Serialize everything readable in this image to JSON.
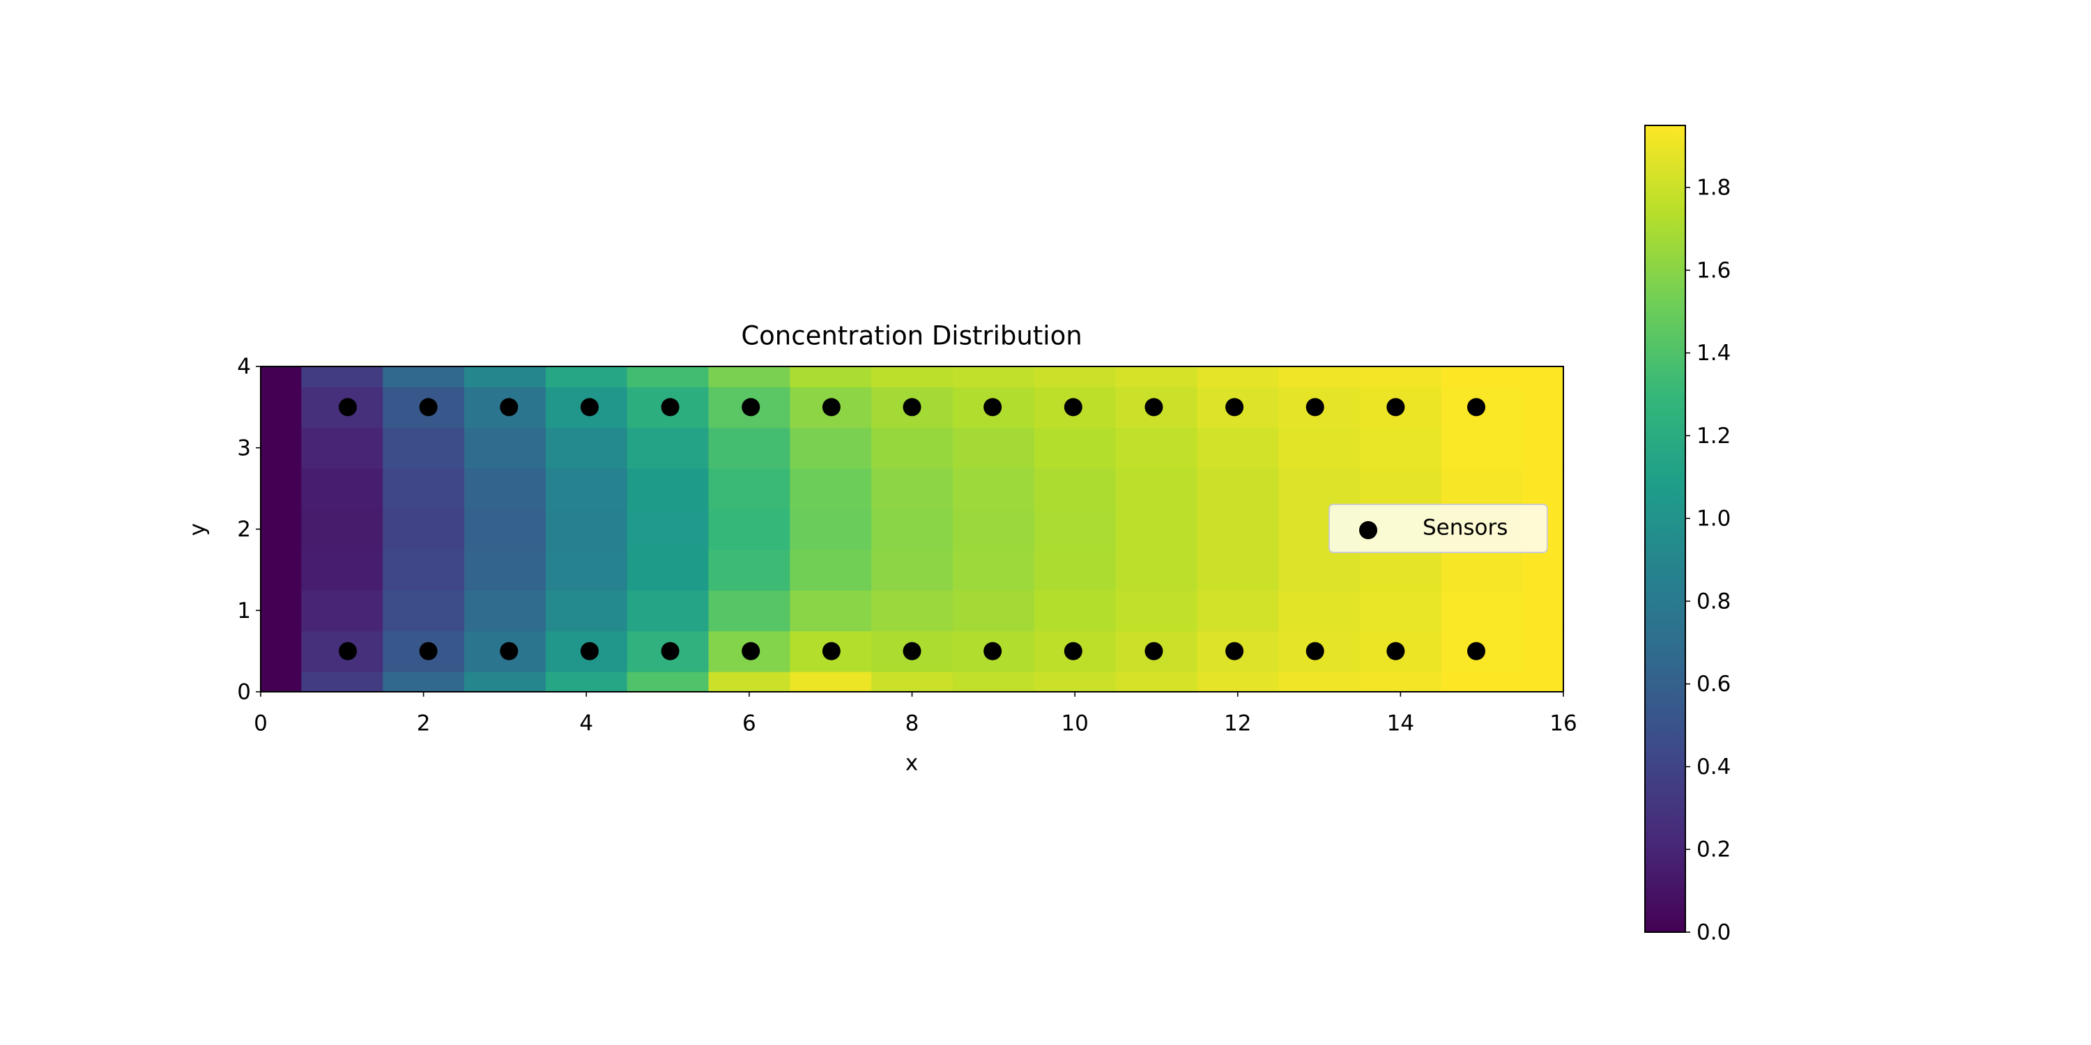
{
  "chart_data": {
    "type": "contour",
    "title": "Concentration Distribution",
    "xlabel": "x",
    "ylabel": "y",
    "xlim": [
      0,
      16
    ],
    "ylim": [
      0,
      4
    ],
    "xticks": [
      0,
      2,
      4,
      6,
      8,
      10,
      12,
      14,
      16
    ],
    "yticks": [
      0,
      1,
      2,
      3,
      4
    ],
    "colormap": "viridis",
    "clim": [
      0,
      1.95
    ],
    "cticks": [
      {
        "value": 0,
        "label": "0.0"
      },
      0.2,
      0.4,
      0.6,
      0.8,
      {
        "value": 1,
        "label": "1.0"
      },
      1.2,
      1.4,
      1.6,
      1.8
    ],
    "grid_x": [
      0,
      1,
      2,
      3,
      4,
      5,
      6,
      7,
      8,
      9,
      10,
      11,
      12,
      13,
      14,
      15,
      16
    ],
    "grid_y": [
      0,
      0.5,
      1,
      1.5,
      2,
      2.5,
      3,
      3.5,
      4
    ],
    "z": [
      [
        0,
        0.35,
        0.65,
        0.9,
        1.15,
        1.4,
        1.8,
        1.9,
        1.8,
        1.77,
        1.8,
        1.83,
        1.88,
        1.91,
        1.92,
        1.95,
        1.95
      ],
      [
        0,
        0.26,
        0.54,
        0.77,
        1.02,
        1.25,
        1.58,
        1.73,
        1.71,
        1.72,
        1.76,
        1.8,
        1.85,
        1.88,
        1.9,
        1.94,
        1.95
      ],
      [
        0,
        0.2,
        0.46,
        0.68,
        0.93,
        1.14,
        1.43,
        1.6,
        1.65,
        1.68,
        1.73,
        1.77,
        1.82,
        1.87,
        1.89,
        1.94,
        1.95
      ],
      [
        0,
        0.16,
        0.42,
        0.62,
        0.87,
        1.07,
        1.33,
        1.53,
        1.61,
        1.66,
        1.71,
        1.75,
        1.8,
        1.85,
        1.88,
        1.93,
        1.95
      ],
      [
        0,
        0.15,
        0.4,
        0.6,
        0.85,
        1.05,
        1.3,
        1.5,
        1.6,
        1.65,
        1.7,
        1.75,
        1.8,
        1.85,
        1.88,
        1.93,
        1.95
      ],
      [
        0,
        0.16,
        0.42,
        0.62,
        0.87,
        1.07,
        1.32,
        1.51,
        1.61,
        1.66,
        1.71,
        1.75,
        1.8,
        1.85,
        1.88,
        1.93,
        1.95
      ],
      [
        0,
        0.2,
        0.46,
        0.68,
        0.93,
        1.13,
        1.36,
        1.55,
        1.64,
        1.68,
        1.73,
        1.77,
        1.82,
        1.87,
        1.89,
        1.94,
        1.95
      ],
      [
        0,
        0.26,
        0.54,
        0.77,
        1.02,
        1.22,
        1.44,
        1.61,
        1.68,
        1.72,
        1.76,
        1.8,
        1.85,
        1.88,
        1.9,
        1.94,
        1.95
      ],
      [
        0,
        0.35,
        0.65,
        0.9,
        1.15,
        1.35,
        1.55,
        1.7,
        1.75,
        1.77,
        1.8,
        1.83,
        1.88,
        1.91,
        1.92,
        1.95,
        1.95
      ]
    ],
    "series": [
      {
        "name": "Sensors",
        "color": "#000000",
        "x": [
          1.07,
          2.06,
          3.05,
          4.04,
          5.03,
          6.02,
          7.01,
          8.0,
          8.99,
          9.98,
          10.97,
          11.96,
          12.95,
          13.94,
          14.93,
          1.07,
          2.06,
          3.05,
          4.04,
          5.03,
          6.02,
          7.01,
          8.0,
          8.99,
          9.98,
          10.97,
          11.96,
          12.95,
          13.94,
          14.93
        ],
        "values": [
          0.5,
          0.5,
          0.5,
          0.5,
          0.5,
          0.5,
          0.5,
          0.5,
          0.5,
          0.5,
          0.5,
          0.5,
          0.5,
          0.5,
          0.5,
          3.5,
          3.5,
          3.5,
          3.5,
          3.5,
          3.5,
          3.5,
          3.5,
          3.5,
          3.5,
          3.5,
          3.5,
          3.5,
          3.5,
          3.5
        ]
      }
    ],
    "legend": "right"
  }
}
